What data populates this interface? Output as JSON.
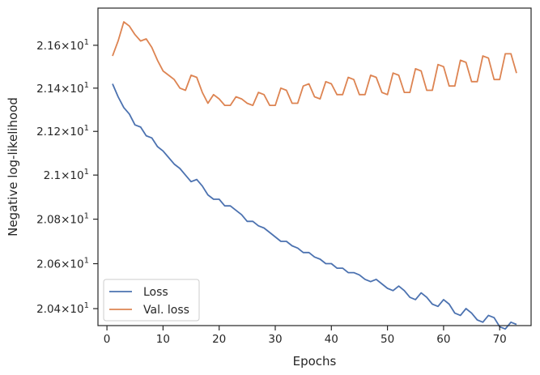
{
  "chart_data": {
    "type": "line",
    "xlabel": "Epochs",
    "ylabel": "Negative log-likelihood",
    "xlim": [
      -1.6,
      75.6
    ],
    "ylim": [
      20.325,
      21.775
    ],
    "y_scale": "log",
    "grid": false,
    "legend_position": "lower-left",
    "x_ticks": [
      0,
      10,
      20,
      30,
      40,
      50,
      60,
      70
    ],
    "x_tick_labels": [
      "0",
      "10",
      "20",
      "30",
      "40",
      "50",
      "60",
      "70"
    ],
    "y_ticks": [
      20.4,
      20.6,
      20.8,
      21.0,
      21.2,
      21.4,
      21.6
    ],
    "y_tick_labels": [
      {
        "mantissa": "2.04",
        "sup": "1"
      },
      {
        "mantissa": "2.06",
        "sup": "1"
      },
      {
        "mantissa": "2.08",
        "sup": "1"
      },
      {
        "mantissa": "2.1",
        "sup": "1"
      },
      {
        "mantissa": "2.12",
        "sup": "1"
      },
      {
        "mantissa": "2.14",
        "sup": "1"
      },
      {
        "mantissa": "2.16",
        "sup": "1"
      }
    ],
    "y_tick_times": "×",
    "y_tick_base": "10",
    "x": [
      1,
      2,
      3,
      4,
      5,
      6,
      7,
      8,
      9,
      10,
      11,
      12,
      13,
      14,
      15,
      16,
      17,
      18,
      19,
      20,
      21,
      22,
      23,
      24,
      25,
      26,
      27,
      28,
      29,
      30,
      31,
      32,
      33,
      34,
      35,
      36,
      37,
      38,
      39,
      40,
      41,
      42,
      43,
      44,
      45,
      46,
      47,
      48,
      49,
      50,
      51,
      52,
      53,
      54,
      55,
      56,
      57,
      58,
      59,
      60,
      61,
      62,
      63,
      64,
      65,
      66,
      67,
      68,
      69,
      70,
      71,
      72,
      73
    ],
    "series": [
      {
        "name": "Loss",
        "color": "#4c72b0",
        "values": [
          21.42,
          21.36,
          21.31,
          21.28,
          21.23,
          21.22,
          21.18,
          21.17,
          21.13,
          21.11,
          21.08,
          21.05,
          21.03,
          21.0,
          20.97,
          20.98,
          20.95,
          20.91,
          20.89,
          20.89,
          20.86,
          20.86,
          20.84,
          20.82,
          20.79,
          20.79,
          20.77,
          20.76,
          20.74,
          20.72,
          20.7,
          20.7,
          20.68,
          20.67,
          20.65,
          20.65,
          20.63,
          20.62,
          20.6,
          20.6,
          20.58,
          20.58,
          20.56,
          20.56,
          20.55,
          20.53,
          20.52,
          20.53,
          20.51,
          20.49,
          20.48,
          20.5,
          20.48,
          20.45,
          20.44,
          20.47,
          20.45,
          20.42,
          20.41,
          20.44,
          20.42,
          20.38,
          20.37,
          20.4,
          20.38,
          20.35,
          20.34,
          20.37,
          20.36,
          20.32,
          20.31,
          20.34,
          20.33
        ]
      },
      {
        "name": "Val. loss",
        "color": "#dd8452",
        "values": [
          21.55,
          21.62,
          21.71,
          21.69,
          21.65,
          21.62,
          21.63,
          21.59,
          21.53,
          21.48,
          21.46,
          21.44,
          21.4,
          21.39,
          21.46,
          21.45,
          21.38,
          21.33,
          21.37,
          21.35,
          21.32,
          21.32,
          21.36,
          21.35,
          21.33,
          21.32,
          21.38,
          21.37,
          21.32,
          21.32,
          21.4,
          21.39,
          21.33,
          21.33,
          21.41,
          21.42,
          21.36,
          21.35,
          21.43,
          21.42,
          21.37,
          21.37,
          21.45,
          21.44,
          21.37,
          21.37,
          21.46,
          21.45,
          21.38,
          21.37,
          21.47,
          21.46,
          21.38,
          21.38,
          21.49,
          21.48,
          21.39,
          21.39,
          21.51,
          21.5,
          21.41,
          21.41,
          21.53,
          21.52,
          21.43,
          21.43,
          21.55,
          21.54,
          21.44,
          21.44,
          21.56,
          21.56,
          21.47
        ]
      }
    ]
  }
}
